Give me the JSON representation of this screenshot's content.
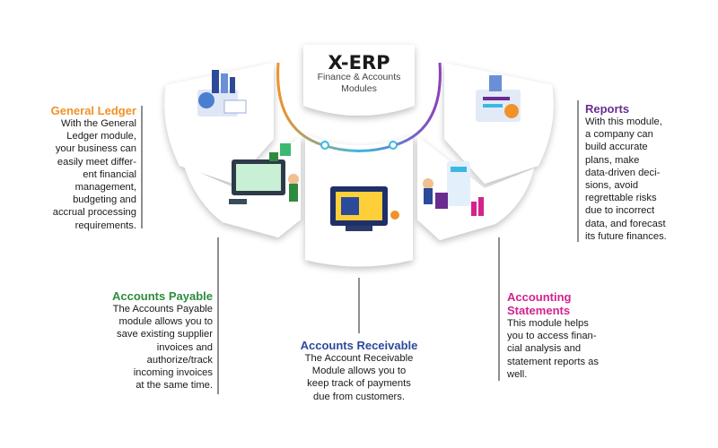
{
  "hub": {
    "title": "X-ERP",
    "subtitle": "Finance & Accounts\nModules"
  },
  "modules": {
    "general_ledger": {
      "title": "General Ledger",
      "text": "With the General\nLedger module,\nyour business can\neasily meet differ-\nent financial\nmanagement,\nbudgeting and\naccrual processing\nrequirements.",
      "color": "#f0922a"
    },
    "accounts_payable": {
      "title": "Accounts Payable",
      "text": "The Accounts Payable\nmodule allows you to\nsave existing supplier\ninvoices and\nauthorize/track\nincoming invoices\nat the same time.",
      "color": "#2e8b3e"
    },
    "accounts_receivable": {
      "title": "Accounts Receivable",
      "text": "The Account Receivable\nModule allows you to\nkeep track of payments\ndue from customers.",
      "color": "#2b4a9a"
    },
    "accounting_statements": {
      "title": "Accounting\nStatements",
      "text": "This module helps\nyou to access finan-\ncial analysis and\nstatement reports as\nwell.",
      "color": "#d2238f"
    },
    "reports": {
      "title": "Reports",
      "text": "With this module,\na company can\nbuild accurate\nplans, make\ndata-driven deci-\nsions, avoid\nregrettable risks\ndue to incorrect\ndata, and forecast\nits future finances.",
      "color": "#6a2c91"
    }
  },
  "colors": {
    "arc_start": "#f0922a",
    "arc_mid": "#3cb8e0",
    "arc_end": "#8e3fb8",
    "connector": "#444444"
  }
}
